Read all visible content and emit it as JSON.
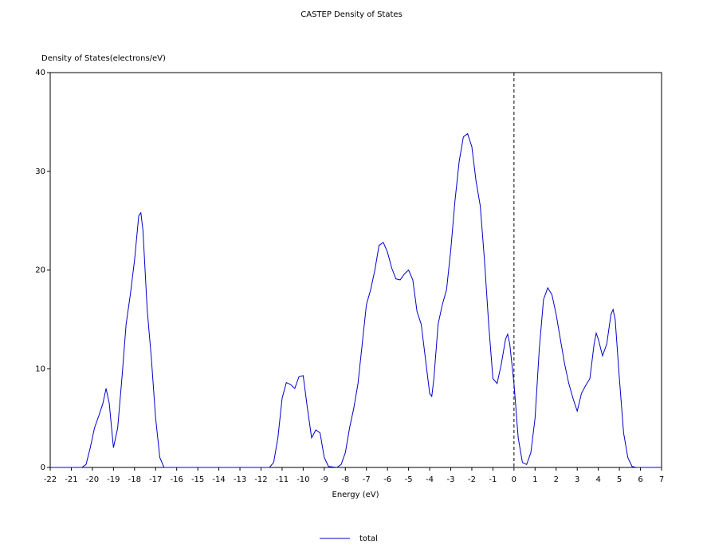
{
  "chart_data": {
    "type": "line",
    "title": "CASTEP Density of States",
    "y_label": "Density of States(electrons/eV)",
    "x_label": "Energy (eV)",
    "xlim": [
      -22,
      7
    ],
    "xticks": [
      -22,
      -21,
      -20,
      -19,
      -18,
      -17,
      -16,
      -15,
      -14,
      -13,
      -12,
      -11,
      -10,
      -9,
      -8,
      -7,
      -6,
      -5,
      -4,
      -3,
      -2,
      -1,
      0,
      1,
      2,
      3,
      4,
      5,
      6,
      7
    ],
    "ylim": [
      0,
      40
    ],
    "yticks": [
      0,
      10,
      20,
      30,
      40
    ],
    "fermi_level": 0,
    "legend": "bottom",
    "x": [
      -22,
      -20.5,
      -20.3,
      -20.1,
      -19.9,
      -19.7,
      -19.5,
      -19.35,
      -19.2,
      -19.0,
      -18.8,
      -18.6,
      -18.4,
      -18.2,
      -18.0,
      -17.8,
      -17.7,
      -17.6,
      -17.4,
      -17.2,
      -17.0,
      -16.8,
      -16.6,
      -11.6,
      -11.4,
      -11.2,
      -11.0,
      -10.8,
      -10.6,
      -10.4,
      -10.2,
      -10.0,
      -9.8,
      -9.6,
      -9.4,
      -9.2,
      -9.0,
      -8.8,
      -8.4,
      -8.2,
      -8.0,
      -7.8,
      -7.6,
      -7.4,
      -7.2,
      -7.0,
      -6.8,
      -6.6,
      -6.4,
      -6.2,
      -6.0,
      -5.8,
      -5.6,
      -5.4,
      -5.2,
      -5.0,
      -4.8,
      -4.6,
      -4.4,
      -4.2,
      -4.0,
      -3.9,
      -3.8,
      -3.6,
      -3.4,
      -3.2,
      -3.0,
      -2.8,
      -2.6,
      -2.4,
      -2.2,
      -2.0,
      -1.8,
      -1.6,
      -1.4,
      -1.2,
      -1.0,
      -0.8,
      -0.6,
      -0.4,
      -0.3,
      -0.2,
      0,
      0.2,
      0.4,
      0.6,
      0.8,
      1.0,
      1.2,
      1.4,
      1.6,
      1.8,
      2.0,
      2.2,
      2.4,
      2.6,
      2.8,
      3.0,
      3.2,
      3.4,
      3.6,
      3.8,
      3.9,
      4.0,
      4.2,
      4.4,
      4.6,
      4.7,
      4.8,
      5.0,
      5.2,
      5.4,
      5.6,
      5.8,
      7
    ],
    "series": [
      {
        "name": "total",
        "color": "#0000cc",
        "values": [
          0,
          0,
          0.3,
          2,
          4,
          5.2,
          6.5,
          8,
          6.5,
          2,
          4,
          9,
          14.5,
          17.5,
          21,
          25.5,
          25.8,
          24,
          16,
          11,
          5,
          1,
          0,
          0,
          0.5,
          3,
          7,
          8.6,
          8.4,
          8.0,
          9.2,
          9.3,
          6,
          3,
          3.8,
          3.5,
          1,
          0.1,
          0,
          0.3,
          1.5,
          4,
          6,
          8.5,
          12.5,
          16.5,
          18,
          20,
          22.5,
          22.8,
          21.8,
          20.2,
          19.1,
          19,
          19.6,
          20,
          19,
          15.8,
          14.5,
          11,
          7.5,
          7.2,
          9,
          14.5,
          16.5,
          18,
          22,
          27,
          31,
          33.5,
          33.8,
          32.5,
          29,
          26.5,
          21,
          14.5,
          9,
          8.5,
          10.5,
          13,
          13.5,
          12.5,
          8.5,
          3,
          0.5,
          0.3,
          1.5,
          5,
          12,
          17,
          18.2,
          17.5,
          15.5,
          13,
          10.5,
          8.5,
          7,
          5.7,
          7.5,
          8.3,
          9,
          12.5,
          13.6,
          13,
          11.3,
          12.5,
          15.5,
          16,
          15,
          9,
          3.5,
          1,
          0.1,
          0,
          0
        ]
      }
    ]
  }
}
